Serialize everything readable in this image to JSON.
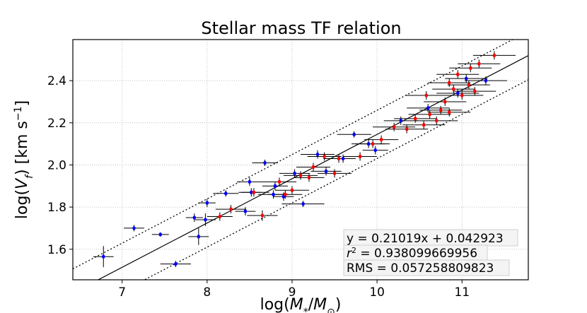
{
  "chart_data": {
    "type": "scatter",
    "title": "Stellar mass TF relation",
    "xlabel": "log(M*/M⊙)",
    "ylabel": "log(Vf) [km s⁻¹]",
    "xlabel_parts": {
      "prefix": "log(",
      "m": "M",
      "m_sub": "*",
      "slash": "/",
      "m2": "M",
      "m2_sub": "⊙",
      "suffix": ")"
    },
    "ylabel_parts": {
      "prefix": "log(",
      "v": "V",
      "v_sub": "f",
      "mid": ") [km s",
      "sup": "−1",
      "suffix": "]"
    },
    "xlim": [
      6.42,
      11.78
    ],
    "ylim": [
      1.455,
      2.595
    ],
    "xticks": [
      7,
      8,
      9,
      10,
      11
    ],
    "yticks": [
      1.6,
      1.8,
      2.0,
      2.2,
      2.4
    ],
    "xtick_labels": [
      "7",
      "8",
      "9",
      "10",
      "11"
    ],
    "ytick_labels": [
      "1.6",
      "1.8",
      "2.0",
      "2.2",
      "2.4"
    ],
    "grid": true,
    "fit": {
      "slope": 0.21019,
      "intercept": 0.042923,
      "scatter": 0.057258809823
    },
    "annotations": [
      "y = 0.21019x + 0.042923",
      "r² = 0.938099669956",
      "RMS = 0.057258809823"
    ],
    "annotation_parts": {
      "r": "r",
      "r_sup": "2",
      "r_rest": " = 0.938099669956"
    },
    "series": [
      {
        "name": "blue",
        "color": "#0000ff",
        "points": [
          {
            "x": 6.78,
            "y": 1.565,
            "xerr": 0.12,
            "yerr": 0.05
          },
          {
            "x": 7.14,
            "y": 1.7,
            "xerr": 0.12,
            "yerr": 0.015
          },
          {
            "x": 7.45,
            "y": 1.67,
            "xerr": 0.1,
            "yerr": 0.01
          },
          {
            "x": 7.63,
            "y": 1.53,
            "xerr": 0.18,
            "yerr": 0.015
          },
          {
            "x": 7.9,
            "y": 1.66,
            "xerr": 0.12,
            "yerr": 0.04
          },
          {
            "x": 7.85,
            "y": 1.75,
            "xerr": 0.1,
            "yerr": 0.02
          },
          {
            "x": 7.98,
            "y": 1.74,
            "xerr": 0.12,
            "yerr": 0.03
          },
          {
            "x": 8.0,
            "y": 1.82,
            "xerr": 0.1,
            "yerr": 0.02
          },
          {
            "x": 8.22,
            "y": 1.865,
            "xerr": 0.15,
            "yerr": 0.015
          },
          {
            "x": 8.45,
            "y": 1.78,
            "xerr": 0.12,
            "yerr": 0.02
          },
          {
            "x": 8.5,
            "y": 1.92,
            "xerr": 0.15,
            "yerr": 0.02
          },
          {
            "x": 8.52,
            "y": 1.87,
            "xerr": 0.12,
            "yerr": 0.02
          },
          {
            "x": 8.78,
            "y": 1.86,
            "xerr": 0.18,
            "yerr": 0.02
          },
          {
            "x": 8.8,
            "y": 1.9,
            "xerr": 0.15,
            "yerr": 0.02
          },
          {
            "x": 8.68,
            "y": 2.01,
            "xerr": 0.15,
            "yerr": 0.015
          },
          {
            "x": 8.9,
            "y": 1.85,
            "xerr": 0.12,
            "yerr": 0.02
          },
          {
            "x": 9.03,
            "y": 1.96,
            "xerr": 0.18,
            "yerr": 0.02
          },
          {
            "x": 9.13,
            "y": 1.815,
            "xerr": 0.25,
            "yerr": 0.015
          },
          {
            "x": 9.3,
            "y": 2.05,
            "xerr": 0.2,
            "yerr": 0.02
          },
          {
            "x": 9.4,
            "y": 1.97,
            "xerr": 0.18,
            "yerr": 0.02
          },
          {
            "x": 9.6,
            "y": 2.03,
            "xerr": 0.15,
            "yerr": 0.02
          },
          {
            "x": 9.73,
            "y": 2.145,
            "xerr": 0.2,
            "yerr": 0.015
          },
          {
            "x": 9.9,
            "y": 2.1,
            "xerr": 0.2,
            "yerr": 0.02
          },
          {
            "x": 9.98,
            "y": 2.07,
            "xerr": 0.15,
            "yerr": 0.02
          },
          {
            "x": 10.28,
            "y": 2.21,
            "xerr": 0.2,
            "yerr": 0.02
          },
          {
            "x": 10.6,
            "y": 2.27,
            "xerr": 0.25,
            "yerr": 0.02
          },
          {
            "x": 10.95,
            "y": 2.34,
            "xerr": 0.25,
            "yerr": 0.02
          },
          {
            "x": 11.05,
            "y": 2.41,
            "xerr": 0.25,
            "yerr": 0.02
          },
          {
            "x": 11.28,
            "y": 2.4,
            "xerr": 0.25,
            "yerr": 0.02
          }
        ]
      },
      {
        "name": "red",
        "color": "#ff0000",
        "points": [
          {
            "x": 8.15,
            "y": 1.755,
            "xerr": 0.15,
            "yerr": 0.02
          },
          {
            "x": 8.28,
            "y": 1.79,
            "xerr": 0.18,
            "yerr": 0.02
          },
          {
            "x": 8.65,
            "y": 1.76,
            "xerr": 0.18,
            "yerr": 0.025
          },
          {
            "x": 8.55,
            "y": 1.87,
            "xerr": 0.18,
            "yerr": 0.02
          },
          {
            "x": 8.92,
            "y": 1.86,
            "xerr": 0.2,
            "yerr": 0.02
          },
          {
            "x": 9.0,
            "y": 1.88,
            "xerr": 0.2,
            "yerr": 0.02
          },
          {
            "x": 8.85,
            "y": 1.92,
            "xerr": 0.2,
            "yerr": 0.02
          },
          {
            "x": 9.1,
            "y": 1.95,
            "xerr": 0.2,
            "yerr": 0.02
          },
          {
            "x": 9.2,
            "y": 1.94,
            "xerr": 0.18,
            "yerr": 0.02
          },
          {
            "x": 9.25,
            "y": 1.99,
            "xerr": 0.2,
            "yerr": 0.02
          },
          {
            "x": 9.38,
            "y": 2.04,
            "xerr": 0.2,
            "yerr": 0.02
          },
          {
            "x": 9.5,
            "y": 1.96,
            "xerr": 0.2,
            "yerr": 0.02
          },
          {
            "x": 9.55,
            "y": 2.03,
            "xerr": 0.18,
            "yerr": 0.02
          },
          {
            "x": 9.8,
            "y": 2.04,
            "xerr": 0.2,
            "yerr": 0.02
          },
          {
            "x": 9.95,
            "y": 2.1,
            "xerr": 0.2,
            "yerr": 0.02
          },
          {
            "x": 10.05,
            "y": 2.12,
            "xerr": 0.2,
            "yerr": 0.02
          },
          {
            "x": 10.2,
            "y": 2.18,
            "xerr": 0.25,
            "yerr": 0.02
          },
          {
            "x": 10.35,
            "y": 2.17,
            "xerr": 0.25,
            "yerr": 0.02
          },
          {
            "x": 10.45,
            "y": 2.22,
            "xerr": 0.25,
            "yerr": 0.02
          },
          {
            "x": 10.55,
            "y": 2.19,
            "xerr": 0.25,
            "yerr": 0.02
          },
          {
            "x": 10.62,
            "y": 2.24,
            "xerr": 0.25,
            "yerr": 0.02
          },
          {
            "x": 10.7,
            "y": 2.21,
            "xerr": 0.25,
            "yerr": 0.02
          },
          {
            "x": 10.75,
            "y": 2.26,
            "xerr": 0.25,
            "yerr": 0.02
          },
          {
            "x": 10.8,
            "y": 2.3,
            "xerr": 0.25,
            "yerr": 0.02
          },
          {
            "x": 10.85,
            "y": 2.25,
            "xerr": 0.25,
            "yerr": 0.02
          },
          {
            "x": 10.58,
            "y": 2.33,
            "xerr": 0.25,
            "yerr": 0.02
          },
          {
            "x": 10.9,
            "y": 2.36,
            "xerr": 0.25,
            "yerr": 0.02
          },
          {
            "x": 11.0,
            "y": 2.33,
            "xerr": 0.25,
            "yerr": 0.02
          },
          {
            "x": 11.08,
            "y": 2.38,
            "xerr": 0.25,
            "yerr": 0.02
          },
          {
            "x": 11.15,
            "y": 2.35,
            "xerr": 0.25,
            "yerr": 0.02
          },
          {
            "x": 10.95,
            "y": 2.43,
            "xerr": 0.25,
            "yerr": 0.02
          },
          {
            "x": 11.1,
            "y": 2.46,
            "xerr": 0.25,
            "yerr": 0.02
          },
          {
            "x": 11.2,
            "y": 2.48,
            "xerr": 0.25,
            "yerr": 0.02
          },
          {
            "x": 11.38,
            "y": 2.52,
            "xerr": 0.25,
            "yerr": 0.02
          },
          {
            "x": 10.85,
            "y": 2.39,
            "xerr": 0.25,
            "yerr": 0.02
          }
        ]
      }
    ]
  }
}
